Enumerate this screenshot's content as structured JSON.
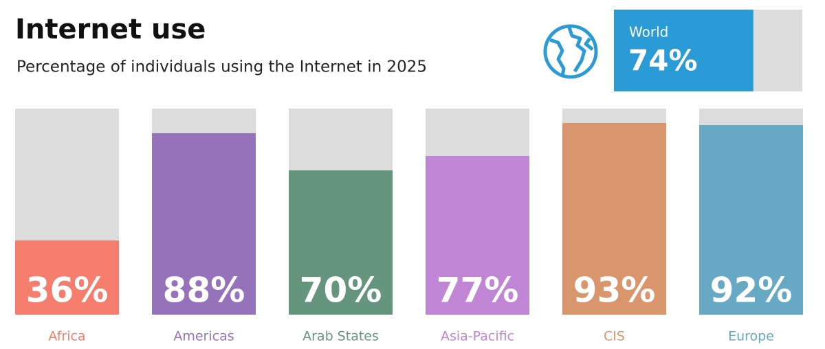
{
  "chart_data": {
    "type": "bar",
    "title": "Internet use",
    "subtitle": "Percentage of individuals using the Internet in 2025",
    "categories": [
      "Africa",
      "Americas",
      "Arab States",
      "Asia-Pacific",
      "CIS",
      "Europe"
    ],
    "values": [
      36,
      88,
      70,
      77,
      93,
      92
    ],
    "value_labels": [
      "36%",
      "88%",
      "70%",
      "77%",
      "93%",
      "92%"
    ],
    "colors": [
      "#f47d6d",
      "#9572b9",
      "#65967d",
      "#c085d4",
      "#d9956b",
      "#67a9c4"
    ],
    "ylim": [
      0,
      100
    ],
    "world": {
      "name": "World",
      "value": 74,
      "value_label": "74%",
      "color": "#2a9bd6"
    }
  }
}
